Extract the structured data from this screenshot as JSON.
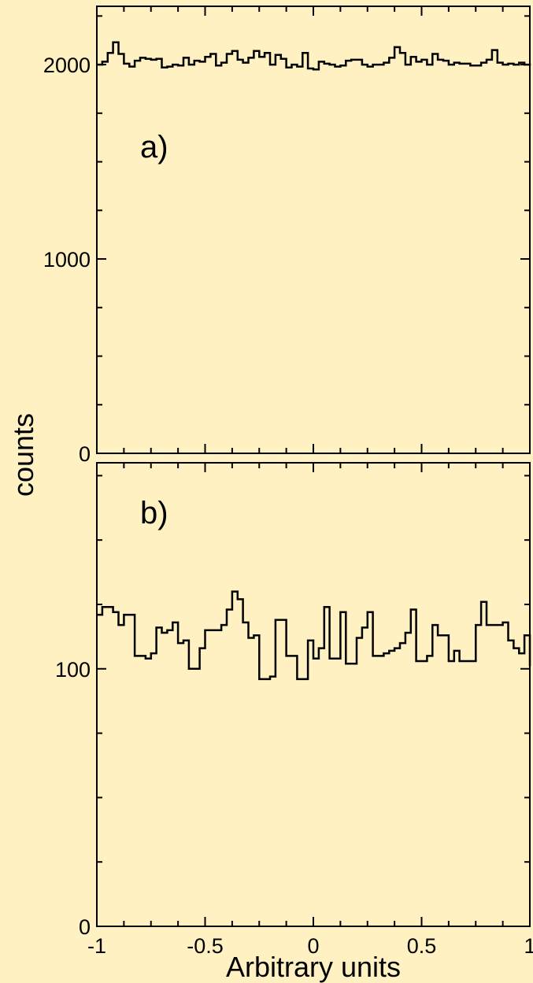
{
  "colors": {
    "background": "#fff1c2",
    "ink": "#000000"
  },
  "figure": {
    "ylabel": "counts",
    "xlabel": "Arbitrary units"
  },
  "chart_data": [
    {
      "type": "histogram",
      "panel_label": "a)",
      "xlim": [
        -1,
        1
      ],
      "ylim": [
        0,
        2300
      ],
      "yticks": [
        0,
        1000,
        2000
      ],
      "ytick_labels": [
        "0",
        "1000",
        "2000"
      ],
      "xticks": [
        -1,
        -0.5,
        0,
        0.5,
        1
      ],
      "xtick_labels": [],
      "bin_edges_start": -1,
      "bin_width": 0.025,
      "values": [
        2000,
        2015,
        2060,
        2115,
        2055,
        2005,
        1990,
        2020,
        2035,
        2030,
        2025,
        2030,
        1985,
        1990,
        2000,
        1995,
        2035,
        2000,
        2020,
        2015,
        2040,
        2055,
        1995,
        2010,
        2055,
        2070,
        2025,
        2010,
        2035,
        2070,
        2040,
        2060,
        2000,
        2050,
        2030,
        1985,
        2000,
        1990,
        2060,
        1980,
        1975,
        2015,
        2005,
        2000,
        1990,
        1995,
        2020,
        2025,
        2025,
        2000,
        1990,
        2000,
        2000,
        2010,
        2035,
        2090,
        2060,
        2000,
        2040,
        2015,
        2025,
        2000,
        2055,
        2025,
        2020,
        2000,
        2010,
        2005,
        2005,
        1995,
        1995,
        2010,
        2025,
        2075,
        2010,
        2000,
        2005,
        2000,
        2010,
        2000,
        2005,
        2000
      ]
    },
    {
      "type": "histogram",
      "panel_label": "b)",
      "xlim": [
        -1,
        1
      ],
      "ylim": [
        0,
        180
      ],
      "yticks": [
        0,
        100
      ],
      "ytick_labels": [
        "0",
        "100"
      ],
      "xticks": [
        -1,
        -0.5,
        0,
        0.5,
        1
      ],
      "xtick_labels": [
        "-1",
        "-0.5",
        "0",
        "0.5",
        "1"
      ],
      "bin_edges_start": -1,
      "bin_width": 0.025,
      "values": [
        121,
        124,
        124,
        122,
        117,
        121,
        121,
        105,
        105,
        104,
        106,
        116,
        114,
        115,
        118,
        110,
        111,
        100,
        100,
        108,
        115,
        115,
        115,
        117,
        123,
        130,
        127,
        118,
        112,
        113,
        96,
        96,
        97,
        119,
        119,
        105,
        105,
        96,
        96,
        111,
        104,
        108,
        124,
        104,
        104,
        122,
        102,
        102,
        112,
        116,
        122,
        105,
        105,
        106,
        107,
        108,
        110,
        114,
        123,
        103,
        103,
        105,
        117,
        113,
        113,
        103,
        107,
        103,
        103,
        103,
        117,
        126,
        117,
        117,
        117,
        118,
        111,
        108,
        106,
        113,
        104,
        101
      ]
    }
  ]
}
